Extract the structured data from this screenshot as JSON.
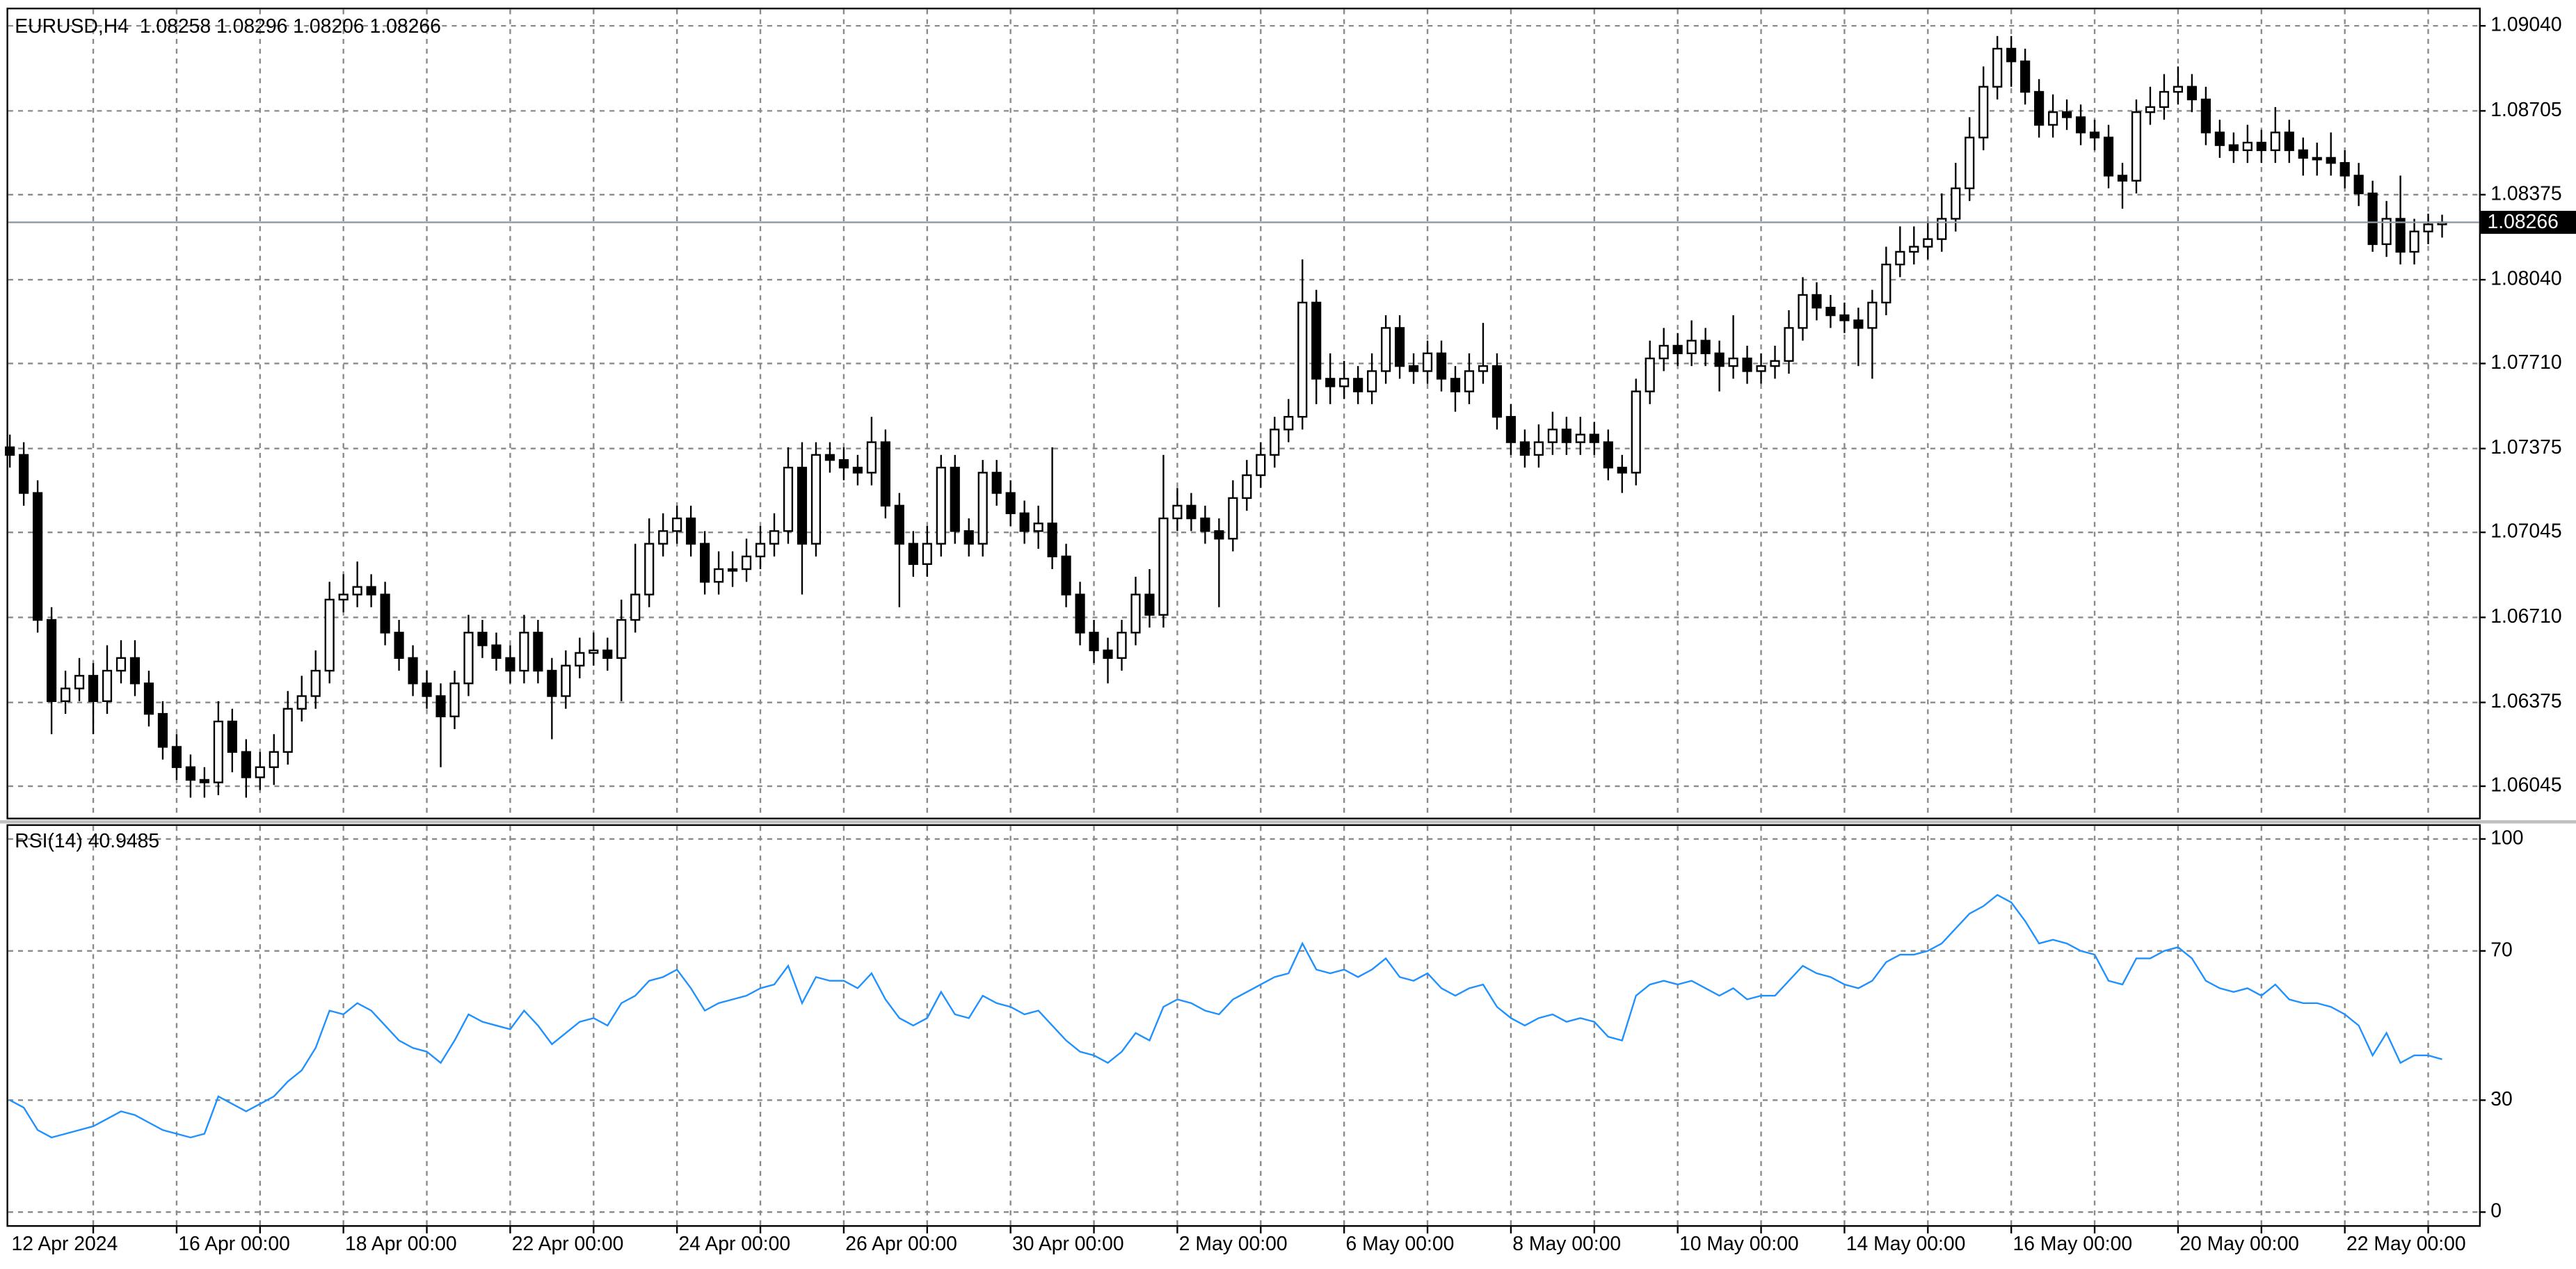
{
  "chart_data": [
    {
      "type": "candlestick",
      "title": "EURUSD,H4  1.08258 1.08296 1.08206 1.08266",
      "categories": [
        "12 Apr 2024",
        null,
        null,
        null,
        null,
        null,
        null,
        null,
        null,
        null,
        null,
        null,
        "16 Apr 00:00",
        null,
        null,
        null,
        null,
        null,
        null,
        null,
        null,
        null,
        null,
        null,
        "18 Apr 00:00",
        null,
        null,
        null,
        null,
        null,
        null,
        null,
        null,
        null,
        null,
        null,
        "22 Apr 00:00",
        null,
        null,
        null,
        null,
        null,
        null,
        null,
        null,
        null,
        null,
        null,
        "24 Apr 00:00",
        null,
        null,
        null,
        null,
        null,
        null,
        null,
        null,
        null,
        null,
        null,
        "26 Apr 00:00",
        null,
        null,
        null,
        null,
        null,
        null,
        null,
        null,
        null,
        null,
        null,
        "30 Apr 00:00",
        null,
        null,
        null,
        null,
        null,
        null,
        null,
        null,
        null,
        null,
        null,
        "2 May 00:00",
        null,
        null,
        null,
        null,
        null,
        null,
        null,
        null,
        null,
        null,
        null,
        "6 May 00:00",
        null,
        null,
        null,
        null,
        null,
        null,
        null,
        null,
        null,
        null,
        null,
        "8 May 00:00",
        null,
        null,
        null,
        null,
        null,
        null,
        null,
        null,
        null,
        null,
        null,
        "10 May 00:00",
        null,
        null,
        null,
        null,
        null,
        null,
        null,
        null,
        null,
        null,
        null,
        "14 May 00:00",
        null,
        null,
        null,
        null,
        null,
        null,
        null,
        null,
        null,
        null,
        null,
        "16 May 00:00",
        null,
        null,
        null,
        null,
        null,
        null,
        null,
        null,
        null,
        null,
        null,
        "20 May 00:00",
        null,
        null,
        null,
        null,
        null,
        null,
        null,
        null,
        null,
        null,
        null,
        "22 May 00:00",
        null,
        null,
        null,
        null,
        null,
        null,
        null
      ],
      "open": [
        1.0738,
        1.0735,
        1.072,
        1.067,
        1.0638,
        1.0643,
        1.0648,
        1.0638,
        1.065,
        1.0655,
        1.0645,
        1.0633,
        1.062,
        1.0612,
        1.0607,
        1.0606,
        1.063,
        1.0618,
        1.0608,
        1.0612,
        1.0618,
        1.0635,
        1.064,
        1.065,
        1.0678,
        1.068,
        1.0683,
        1.068,
        1.0665,
        1.0655,
        1.0645,
        1.064,
        1.0632,
        1.0645,
        1.0665,
        1.066,
        1.0655,
        1.065,
        1.0665,
        1.065,
        1.064,
        1.0652,
        1.0657,
        1.0658,
        1.0655,
        1.067,
        1.068,
        1.07,
        1.0705,
        1.071,
        1.07,
        1.0685,
        1.069,
        1.069,
        1.0695,
        1.07,
        1.0705,
        1.073,
        1.07,
        1.0735,
        1.0733,
        1.073,
        1.0728,
        1.074,
        1.0715,
        1.07,
        1.0692,
        1.07,
        1.073,
        1.0705,
        1.07,
        1.0728,
        1.072,
        1.0712,
        1.0705,
        1.0708,
        1.0695,
        1.068,
        1.0665,
        1.0658,
        1.0655,
        1.0665,
        1.068,
        1.0672,
        1.071,
        1.0715,
        1.071,
        1.0705,
        1.0702,
        1.0718,
        1.0727,
        1.0735,
        1.0745,
        1.075,
        1.0795,
        1.0765,
        1.0762,
        1.0765,
        1.076,
        1.0768,
        1.0785,
        1.077,
        1.0768,
        1.0775,
        1.0765,
        1.076,
        1.0768,
        1.077,
        1.075,
        1.074,
        1.0735,
        1.074,
        1.0745,
        1.074,
        1.0743,
        1.074,
        1.073,
        1.0728,
        1.076,
        1.0773,
        1.0778,
        1.0775,
        1.078,
        1.0775,
        1.077,
        1.0773,
        1.0768,
        1.077,
        1.0772,
        1.0785,
        1.0798,
        1.0793,
        1.079,
        1.0788,
        1.0785,
        1.0795,
        1.081,
        1.0815,
        1.0817,
        1.082,
        1.0828,
        1.084,
        1.086,
        1.088,
        1.0895,
        1.089,
        1.0878,
        1.0865,
        1.087,
        1.0868,
        1.0862,
        1.086,
        1.0845,
        1.0843,
        1.087,
        1.0872,
        1.0878,
        1.088,
        1.0875,
        1.0862,
        1.0857,
        1.0855,
        1.0858,
        1.0855,
        1.0862,
        1.0855,
        1.0852,
        1.0852,
        1.085,
        1.0845,
        1.0838,
        1.0818,
        1.0828,
        1.0815,
        1.0823,
        1.08258
      ],
      "high": [
        1.0743,
        1.074,
        1.0725,
        1.0675,
        1.065,
        1.0655,
        1.0653,
        1.066,
        1.0662,
        1.0662,
        1.065,
        1.0638,
        1.0625,
        1.0617,
        1.0612,
        1.0638,
        1.0635,
        1.0623,
        1.0618,
        1.0625,
        1.0642,
        1.0648,
        1.0658,
        1.0685,
        1.0688,
        1.0693,
        1.0688,
        1.0685,
        1.067,
        1.066,
        1.065,
        1.0645,
        1.065,
        1.0672,
        1.067,
        1.0665,
        1.066,
        1.0672,
        1.067,
        1.0655,
        1.0658,
        1.0663,
        1.0665,
        1.0663,
        1.0678,
        1.07,
        1.071,
        1.0712,
        1.0715,
        1.0715,
        1.0705,
        1.0697,
        1.0697,
        1.0702,
        1.0707,
        1.0712,
        1.0738,
        1.074,
        1.074,
        1.074,
        1.0738,
        1.0735,
        1.075,
        1.0745,
        1.072,
        1.0705,
        1.0707,
        1.0735,
        1.0735,
        1.071,
        1.0733,
        1.0733,
        1.0725,
        1.0717,
        1.0715,
        1.0738,
        1.07,
        1.0685,
        1.067,
        1.0663,
        1.067,
        1.0687,
        1.069,
        1.0735,
        1.0722,
        1.072,
        1.0715,
        1.071,
        1.0725,
        1.0733,
        1.074,
        1.075,
        1.0757,
        1.0812,
        1.08,
        1.0775,
        1.0772,
        1.077,
        1.0775,
        1.079,
        1.079,
        1.0775,
        1.078,
        1.078,
        1.077,
        1.0775,
        1.0787,
        1.0775,
        1.0755,
        1.0745,
        1.0747,
        1.0752,
        1.075,
        1.075,
        1.0748,
        1.0745,
        1.0735,
        1.0765,
        1.078,
        1.0785,
        1.0783,
        1.0788,
        1.0785,
        1.078,
        1.079,
        1.0778,
        1.0775,
        1.0778,
        1.0792,
        1.0805,
        1.0803,
        1.0798,
        1.0795,
        1.0793,
        1.08,
        1.0817,
        1.0825,
        1.0825,
        1.0827,
        1.0838,
        1.085,
        1.0868,
        1.0888,
        1.09,
        1.09,
        1.0895,
        1.0883,
        1.0877,
        1.0875,
        1.0873,
        1.0867,
        1.0865,
        1.085,
        1.0875,
        1.088,
        1.0885,
        1.0888,
        1.0885,
        1.088,
        1.0867,
        1.0862,
        1.0865,
        1.0863,
        1.0872,
        1.0867,
        1.086,
        1.0858,
        1.0862,
        1.0855,
        1.085,
        1.0843,
        1.0835,
        1.0845,
        1.0828,
        1.083,
        1.08296
      ],
      "low": [
        1.073,
        1.0715,
        1.0665,
        1.0625,
        1.0633,
        1.0638,
        1.0625,
        1.0633,
        1.0645,
        1.064,
        1.0628,
        1.0615,
        1.0607,
        1.06,
        1.06,
        1.0601,
        1.061,
        1.06,
        1.0603,
        1.0605,
        1.0613,
        1.063,
        1.0635,
        1.0645,
        1.0673,
        1.0675,
        1.0675,
        1.066,
        1.065,
        1.064,
        1.0635,
        1.0612,
        1.0627,
        1.064,
        1.0655,
        1.065,
        1.0645,
        1.0645,
        1.0645,
        1.0623,
        1.0635,
        1.0647,
        1.0652,
        1.065,
        1.0638,
        1.0665,
        1.0675,
        1.0695,
        1.07,
        1.0695,
        1.068,
        1.068,
        1.0683,
        1.0685,
        1.069,
        1.0695,
        1.07,
        1.068,
        1.0695,
        1.0728,
        1.0725,
        1.0723,
        1.0723,
        1.071,
        1.0675,
        1.0687,
        1.0687,
        1.0695,
        1.07,
        1.0695,
        1.0695,
        1.0715,
        1.0707,
        1.07,
        1.0698,
        1.069,
        1.0675,
        1.066,
        1.0653,
        1.0645,
        1.065,
        1.066,
        1.0667,
        1.0667,
        1.0705,
        1.0705,
        1.07,
        1.0675,
        1.0697,
        1.0713,
        1.0722,
        1.073,
        1.074,
        1.0745,
        1.0755,
        1.0755,
        1.0757,
        1.0755,
        1.0755,
        1.0763,
        1.0765,
        1.0763,
        1.0763,
        1.076,
        1.0752,
        1.0755,
        1.0763,
        1.0745,
        1.0735,
        1.073,
        1.073,
        1.0735,
        1.0735,
        1.0735,
        1.0735,
        1.0725,
        1.072,
        1.0723,
        1.0755,
        1.0768,
        1.077,
        1.077,
        1.077,
        1.076,
        1.0765,
        1.0763,
        1.0763,
        1.0765,
        1.0767,
        1.078,
        1.0788,
        1.0785,
        1.0783,
        1.077,
        1.0765,
        1.079,
        1.0805,
        1.081,
        1.0812,
        1.0815,
        1.0823,
        1.0835,
        1.0855,
        1.0875,
        1.088,
        1.0873,
        1.086,
        1.086,
        1.0863,
        1.0857,
        1.0855,
        1.084,
        1.0832,
        1.0838,
        1.0865,
        1.0867,
        1.0873,
        1.087,
        1.0857,
        1.0852,
        1.085,
        1.085,
        1.085,
        1.085,
        1.085,
        1.0845,
        1.0845,
        1.0845,
        1.084,
        1.0833,
        1.0815,
        1.0813,
        1.081,
        1.081,
        1.0818,
        1.08206
      ],
      "close": [
        1.0735,
        1.072,
        1.067,
        1.0638,
        1.0643,
        1.0648,
        1.0638,
        1.065,
        1.0655,
        1.0645,
        1.0633,
        1.062,
        1.0612,
        1.0607,
        1.0606,
        1.063,
        1.0618,
        1.0608,
        1.0612,
        1.0618,
        1.0635,
        1.064,
        1.065,
        1.0678,
        1.068,
        1.0683,
        1.068,
        1.0665,
        1.0655,
        1.0645,
        1.064,
        1.0632,
        1.0645,
        1.0665,
        1.066,
        1.0655,
        1.065,
        1.0665,
        1.065,
        1.064,
        1.0652,
        1.0657,
        1.0658,
        1.0655,
        1.067,
        1.068,
        1.07,
        1.0705,
        1.071,
        1.07,
        1.0685,
        1.069,
        1.069,
        1.0695,
        1.07,
        1.0705,
        1.073,
        1.07,
        1.0735,
        1.0733,
        1.073,
        1.0728,
        1.074,
        1.0715,
        1.07,
        1.0692,
        1.07,
        1.073,
        1.0705,
        1.07,
        1.0728,
        1.072,
        1.0712,
        1.0705,
        1.0708,
        1.0695,
        1.068,
        1.0665,
        1.0658,
        1.0655,
        1.0665,
        1.068,
        1.0672,
        1.071,
        1.0715,
        1.071,
        1.0705,
        1.0702,
        1.0718,
        1.0727,
        1.0735,
        1.0745,
        1.075,
        1.0795,
        1.0765,
        1.0762,
        1.0765,
        1.076,
        1.0768,
        1.0785,
        1.077,
        1.0768,
        1.0775,
        1.0765,
        1.076,
        1.0768,
        1.077,
        1.075,
        1.074,
        1.0735,
        1.074,
        1.0745,
        1.074,
        1.0743,
        1.074,
        1.073,
        1.0728,
        1.076,
        1.0773,
        1.0778,
        1.0775,
        1.078,
        1.0775,
        1.077,
        1.0773,
        1.0768,
        1.077,
        1.0772,
        1.0785,
        1.0798,
        1.0793,
        1.079,
        1.0788,
        1.0785,
        1.0795,
        1.081,
        1.0815,
        1.0817,
        1.082,
        1.0828,
        1.084,
        1.086,
        1.088,
        1.0895,
        1.089,
        1.0878,
        1.0865,
        1.087,
        1.0868,
        1.0862,
        1.086,
        1.0845,
        1.0843,
        1.087,
        1.0872,
        1.0878,
        1.088,
        1.0875,
        1.0862,
        1.0857,
        1.0855,
        1.0858,
        1.0855,
        1.0862,
        1.0855,
        1.0852,
        1.0852,
        1.085,
        1.0845,
        1.0838,
        1.0818,
        1.0828,
        1.0815,
        1.0823,
        1.08258,
        1.08266
      ],
      "up_color": "#ffffff",
      "down_color": "#000000",
      "outline_color": "#000000",
      "ylim": [
        1.05921,
        1.09105
      ],
      "yticks": [
        {
          "value": 1.0904,
          "label": "1.09040"
        },
        1.08705,
        1.08375,
        {
          "value": 1.0804,
          "label": "1.08040"
        },
        {
          "value": 1.0771,
          "label": "1.07710"
        },
        1.07375,
        1.07045,
        {
          "value": 1.0671,
          "label": "1.06710"
        },
        1.06375,
        1.06045
      ],
      "xticks": [
        6,
        12,
        18,
        24,
        30,
        36,
        42,
        48,
        54,
        60,
        66,
        72,
        78,
        84,
        90,
        96,
        102,
        108,
        114,
        120,
        126,
        132,
        138,
        144,
        150,
        156,
        162,
        168,
        174
      ],
      "grid": true,
      "price_line": true,
      "price_line_color": "#8d99a6"
    },
    {
      "type": "line",
      "title": "RSI(14) 40.9485",
      "color": "#1e90ff",
      "values": [
        30,
        28,
        22,
        20,
        21,
        22,
        23,
        25,
        27,
        26,
        24,
        22,
        21,
        20,
        21,
        31,
        29,
        27,
        29,
        31,
        35,
        38,
        44,
        54,
        53,
        56,
        54,
        50,
        46,
        44,
        43,
        40,
        46,
        53,
        51,
        50,
        49,
        54,
        50,
        45,
        48,
        51,
        52,
        50,
        56,
        58,
        62,
        63,
        65,
        60,
        54,
        56,
        57,
        58,
        60,
        61,
        66,
        56,
        63,
        62,
        62,
        60,
        64,
        57,
        52,
        50,
        52,
        59,
        53,
        52,
        58,
        56,
        55,
        53,
        54,
        50,
        46,
        43,
        42,
        40,
        43,
        48,
        46,
        55,
        57,
        56,
        54,
        53,
        57,
        59,
        61,
        63,
        64,
        72,
        65,
        64,
        65,
        63,
        65,
        68,
        63,
        62,
        64,
        60,
        58,
        60,
        61,
        55,
        52,
        50,
        52,
        53,
        51,
        52,
        51,
        47,
        46,
        58,
        61,
        62,
        61,
        62,
        60,
        58,
        60,
        57,
        58,
        58,
        62,
        66,
        64,
        63,
        61,
        60,
        62,
        67,
        69,
        69,
        70,
        72,
        76,
        80,
        82,
        85,
        83,
        78,
        72,
        73,
        72,
        70,
        69,
        62,
        61,
        68,
        68,
        70,
        71,
        68,
        62,
        60,
        59,
        60,
        58,
        61,
        57,
        56,
        56,
        55,
        53,
        50,
        42,
        48,
        40,
        42,
        42,
        40.9485
      ],
      "ylim": [
        -3.5,
        103.5
      ],
      "yticks": [
        0,
        30,
        70,
        100
      ],
      "grid": true
    }
  ]
}
